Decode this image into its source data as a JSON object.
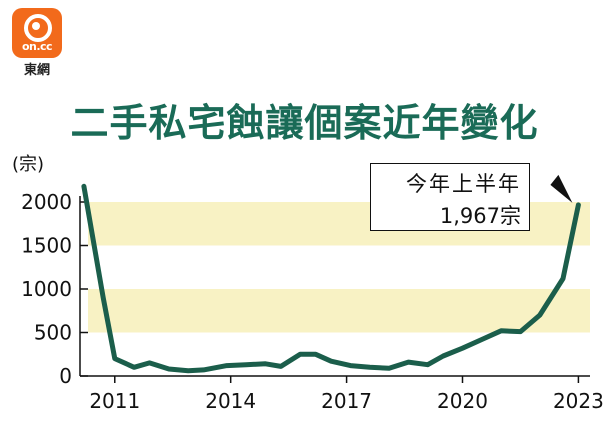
{
  "logo": {
    "mark_text": "on.cc",
    "caption": "東網",
    "color": "#f26a1b"
  },
  "chart_data": {
    "type": "line",
    "title": "二手私宅蝕讓個案近年變化",
    "unit_label": "(宗)",
    "ylabel": "(宗)",
    "xlabel": "",
    "ylim": [
      0,
      2000
    ],
    "y_ticks": [
      0,
      500,
      1000,
      1500,
      2000
    ],
    "x_ticks": [
      "2011",
      "2014",
      "2017",
      "2020",
      "2023"
    ],
    "x_tick_positions": [
      2011,
      2014,
      2017,
      2020,
      2023
    ],
    "xlim": [
      2010.1,
      2023.3
    ],
    "grid": false,
    "bands": [
      [
        500,
        1000
      ],
      [
        1500,
        2000
      ]
    ],
    "band_color": "#f8f2c4",
    "line_color": "#1b5e4b",
    "x": [
      2010.2,
      2010.7,
      2011.0,
      2011.5,
      2011.9,
      2012.4,
      2012.9,
      2013.3,
      2013.9,
      2014.4,
      2014.9,
      2015.3,
      2015.8,
      2016.2,
      2016.6,
      2017.1,
      2017.6,
      2018.1,
      2018.6,
      2019.1,
      2019.5,
      2020.0,
      2020.5,
      2021.0,
      2021.5,
      2022.0,
      2022.6,
      2023.0
    ],
    "y": [
      2180,
      900,
      200,
      100,
      150,
      80,
      60,
      70,
      120,
      130,
      140,
      110,
      250,
      250,
      170,
      120,
      100,
      90,
      160,
      130,
      230,
      320,
      420,
      520,
      510,
      700,
      1120,
      1967
    ],
    "annotation": {
      "line1": "今年上半年",
      "line2": "1,967宗",
      "x": 2023.0,
      "y": 1967
    }
  }
}
